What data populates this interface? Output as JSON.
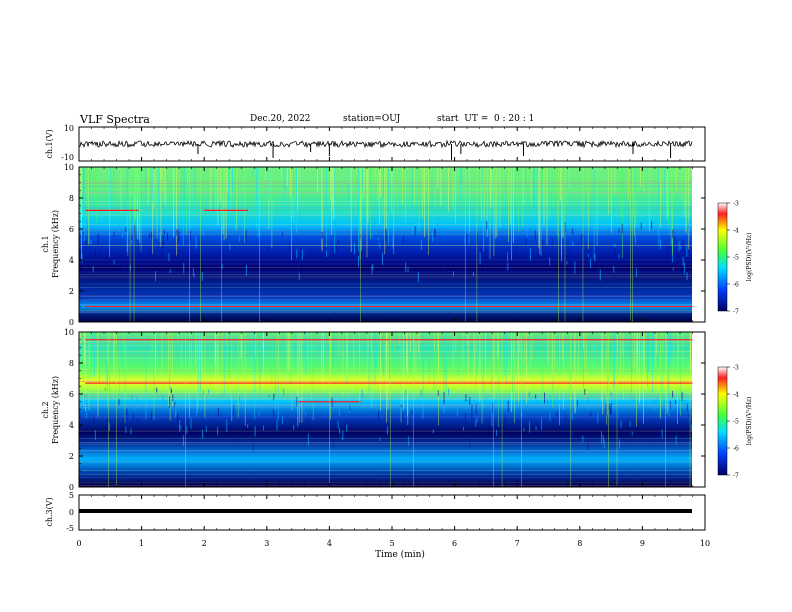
{
  "header": {
    "title": "VLF Spectra",
    "date": "Dec.20, 2022",
    "station": "station=OUJ",
    "start": "start  UT =  0 : 20 : 1"
  },
  "chart_data": [
    {
      "type": "line",
      "panel": "ch1-waveform",
      "ylabel": "ch.1(V)",
      "ylim": [
        -10,
        10
      ],
      "yticks": [
        "10",
        "-10"
      ],
      "description_values": {
        "baseline": 0
      }
    },
    {
      "type": "heatmap",
      "panel": "ch1-spectrogram",
      "ylabel": "ch.1 Frequency (kHz)",
      "ylim": [
        0,
        10
      ],
      "yticks": [
        "0",
        "2",
        "4",
        "6",
        "8",
        "10"
      ],
      "xlim": [
        0,
        10
      ],
      "colorbar": {
        "label": "log(PSD)(V²/Hz)",
        "range": [
          -7,
          -3
        ],
        "ticks": [
          "-3",
          "-4",
          "-5",
          "-6",
          "-7"
        ]
      }
    },
    {
      "type": "heatmap",
      "panel": "ch2-spectrogram",
      "ylabel": "ch.2 Frequency (kHz)",
      "ylim": [
        0,
        10
      ],
      "yticks": [
        "0",
        "2",
        "4",
        "6",
        "8",
        "10"
      ],
      "xlim": [
        0,
        10
      ],
      "colorbar": {
        "label": "log(PSD)(V²/Hz)",
        "range": [
          -7,
          -3
        ],
        "ticks": [
          "-3",
          "-4",
          "-5",
          "-6",
          "-7"
        ]
      }
    },
    {
      "type": "line",
      "panel": "ch3-waveform",
      "ylabel": "ch.3(V)",
      "ylim": [
        -5,
        5
      ],
      "yticks": [
        "5",
        "0",
        "-5"
      ],
      "description_values": {
        "baseline": -1.5
      }
    }
  ],
  "xaxis": {
    "label": "Time (min)",
    "ticks": [
      "0",
      "1",
      "2",
      "3",
      "4",
      "5",
      "6",
      "7",
      "8",
      "9",
      "10"
    ]
  },
  "colors": {
    "low": "#000050",
    "mid": "#00c8ff",
    "high": "#ff2020"
  }
}
